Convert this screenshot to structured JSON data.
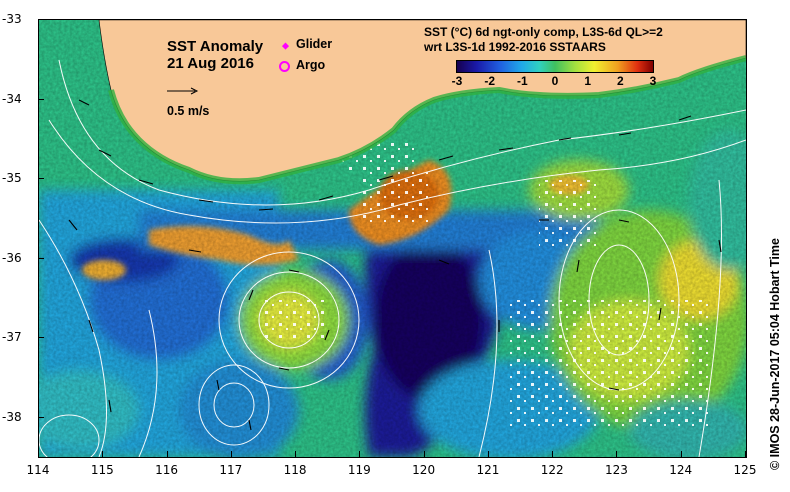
{
  "title": "SST Anomaly",
  "date": "21 Aug 2016",
  "legend": {
    "glider_label": "Glider",
    "argo_label": "Argo",
    "glider_color": "#ff00ff",
    "argo_color": "#ff00ff",
    "vector_scale": "0.5 m/s"
  },
  "product_line1": "SST (°C) 6d ngt-only comp, L3S-6d QL>=2",
  "product_line2": "wrt L3S-1d 1992-2016 SSTAARS",
  "colorbar": {
    "ticks": [
      "-3",
      "-2",
      "-1",
      "0",
      "1",
      "2",
      "3"
    ],
    "colors": [
      "#160050",
      "#1a1aa8",
      "#2060e0",
      "#20a8e8",
      "#40c060",
      "#f0f030",
      "#f0a020",
      "#e03010",
      "#800000"
    ]
  },
  "x_ticks": [
    "114",
    "115",
    "116",
    "117",
    "118",
    "119",
    "120",
    "121",
    "122",
    "123",
    "124",
    "125"
  ],
  "y_ticks": [
    "-33",
    "-34",
    "-35",
    "-36",
    "-37",
    "-38"
  ],
  "land_color": "#f8c898",
  "credit": "©  IMOS 28-Jun-2017 05:04 Hobart Time"
}
